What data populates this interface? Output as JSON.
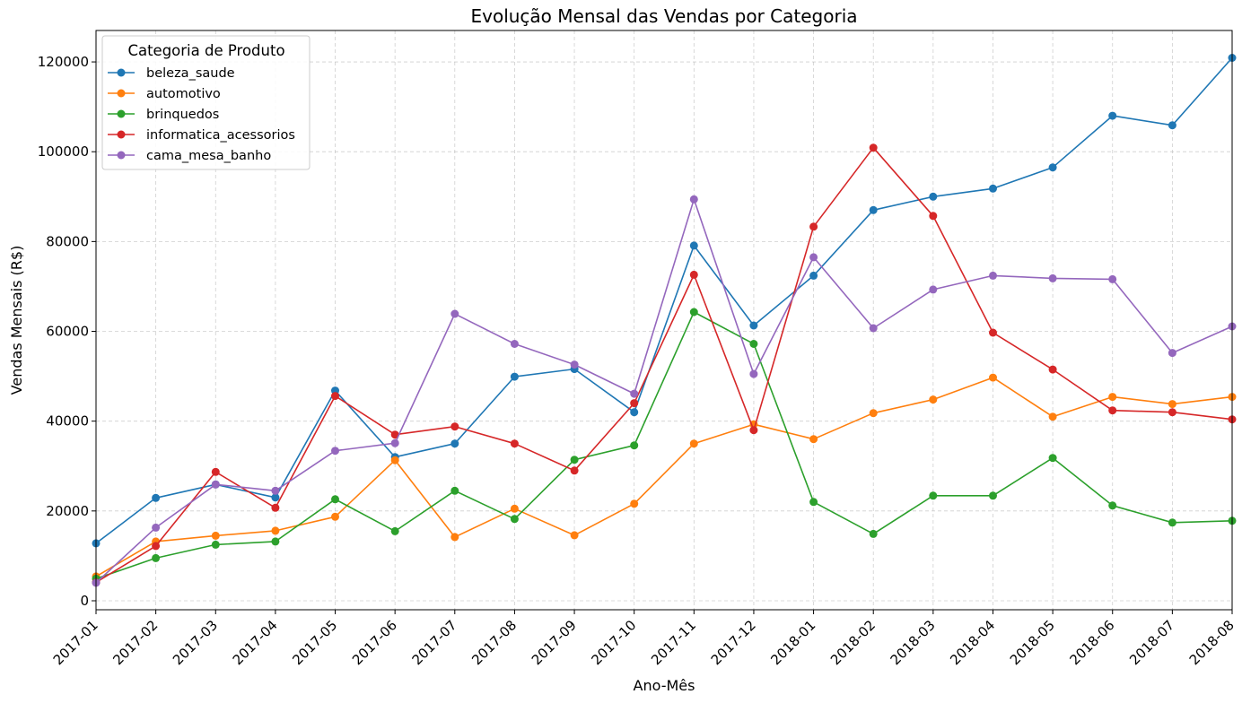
{
  "chart_data": {
    "type": "line",
    "title": "Evolução Mensal das Vendas por Categoria",
    "xlabel": "Ano-Mês",
    "ylabel": "Vendas Mensais (R$)",
    "ylim": [
      -2000,
      127000
    ],
    "yticks": [
      0,
      20000,
      40000,
      60000,
      80000,
      100000,
      120000
    ],
    "grid": true,
    "legend_title": "Categoria de Produto",
    "legend_position": "top-left",
    "x": [
      "2017-01",
      "2017-02",
      "2017-03",
      "2017-04",
      "2017-05",
      "2017-06",
      "2017-07",
      "2017-08",
      "2017-09",
      "2017-10",
      "2017-11",
      "2017-12",
      "2018-01",
      "2018-02",
      "2018-03",
      "2018-04",
      "2018-05",
      "2018-06",
      "2018-07",
      "2018-08"
    ],
    "series": [
      {
        "name": "beleza_saude",
        "color": "#1f77b4",
        "values": [
          12800,
          22900,
          25900,
          23000,
          46800,
          32000,
          35000,
          49900,
          51600,
          42000,
          79100,
          61300,
          72400,
          87000,
          90000,
          91800,
          96500,
          108000,
          105900,
          120900
        ]
      },
      {
        "name": "automotivo",
        "color": "#ff7f0e",
        "values": [
          5400,
          13200,
          14500,
          15600,
          18700,
          31300,
          14200,
          20500,
          14600,
          21600,
          35000,
          39300,
          36000,
          41800,
          44800,
          49700,
          41000,
          45400,
          43800,
          45400
        ]
      },
      {
        "name": "brinquedos",
        "color": "#2ca02c",
        "values": [
          4900,
          9500,
          12500,
          13200,
          22600,
          15500,
          24500,
          18200,
          31400,
          34600,
          64300,
          57200,
          22000,
          14900,
          23400,
          23400,
          31800,
          21200,
          17400,
          17800
        ]
      },
      {
        "name": "informatica_acessorios",
        "color": "#d62728",
        "values": [
          4100,
          12200,
          28700,
          20700,
          45600,
          37000,
          38800,
          35000,
          29000,
          44000,
          72600,
          38000,
          83300,
          100900,
          85700,
          59700,
          51500,
          42400,
          42000,
          40400
        ]
      },
      {
        "name": "cama_mesa_banho",
        "color": "#9467bd",
        "values": [
          4000,
          16300,
          25900,
          24500,
          33400,
          35100,
          63900,
          57200,
          52600,
          46100,
          89400,
          50500,
          76500,
          60700,
          69300,
          72400,
          71800,
          71600,
          55200,
          61100
        ]
      }
    ]
  }
}
